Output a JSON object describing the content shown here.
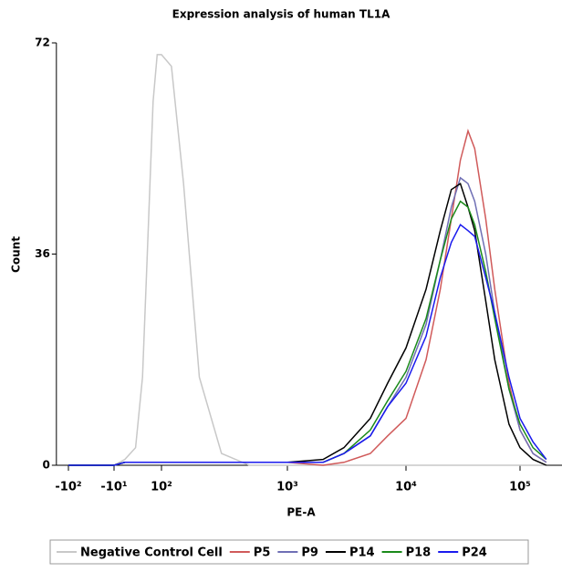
{
  "chart_data": {
    "type": "line",
    "title": "Expression analysis of human TL1A",
    "x_label": "PE-A",
    "y_label": "Count",
    "x": [
      -100,
      -10,
      0,
      10,
      20,
      30,
      50,
      70,
      100,
      120,
      150,
      200,
      300,
      500,
      1000,
      2000,
      3000,
      5000,
      7000,
      10000,
      15000,
      20000,
      25000,
      30000,
      35000,
      40000,
      50000,
      60000,
      80000,
      100000,
      130000,
      170000
    ],
    "xscale": "biexponential",
    "xlim": [
      -175,
      240000
    ],
    "xticks": [
      {
        "value": -100,
        "label": "-10²"
      },
      {
        "value": -10,
        "label": "-10¹"
      },
      {
        "value": 100,
        "label": "10²"
      },
      {
        "value": 1000,
        "label": "10³"
      },
      {
        "value": 10000,
        "label": "10⁴"
      },
      {
        "value": 100000,
        "label": "10⁵"
      }
    ],
    "ylim": [
      0,
      72
    ],
    "yticks": [
      0,
      36,
      72
    ],
    "series": [
      {
        "name": "Negative Control Cell",
        "color": "#c8c8c8",
        "values": [
          0,
          0,
          1,
          3,
          15,
          35,
          62,
          70,
          70,
          68,
          48,
          15,
          2,
          0,
          0,
          0,
          0,
          0,
          0,
          0,
          0,
          0,
          0,
          0,
          0,
          0,
          0,
          0,
          0,
          0,
          0,
          0
        ]
      },
      {
        "name": "P5",
        "color": "#d05a5a",
        "values": [
          0,
          0,
          0.5,
          0.5,
          0.5,
          0.5,
          0.5,
          0.5,
          0.5,
          0.5,
          0.5,
          0.5,
          0.5,
          0.5,
          0.5,
          0,
          0.5,
          2,
          5,
          8,
          18,
          30,
          42,
          52,
          57,
          54,
          42,
          30,
          14,
          6,
          2,
          0.5
        ]
      },
      {
        "name": "P9",
        "color": "#6f6fb5",
        "values": [
          0,
          0,
          0.5,
          0.5,
          0.5,
          0.5,
          0.5,
          0.5,
          0.5,
          0.5,
          0.5,
          0.5,
          0.5,
          0.5,
          0.5,
          0.5,
          2,
          5,
          10,
          15,
          24,
          35,
          44,
          49,
          48,
          45,
          36,
          26,
          13,
          6,
          2,
          0.5
        ]
      },
      {
        "name": "P14",
        "color": "#000000",
        "values": [
          0,
          0,
          0.5,
          0.5,
          0.5,
          0.5,
          0.5,
          0.5,
          0.5,
          0.5,
          0.5,
          0.5,
          0.5,
          0.5,
          0.5,
          1,
          3,
          8,
          14,
          20,
          30,
          40,
          47,
          48,
          44,
          40,
          28,
          18,
          7,
          3,
          1,
          0
        ]
      },
      {
        "name": "P18",
        "color": "#1a8a1a",
        "values": [
          0,
          0,
          0.5,
          0.5,
          0.5,
          0.5,
          0.5,
          0.5,
          0.5,
          0.5,
          0.5,
          0.5,
          0.5,
          0.5,
          0.5,
          0.5,
          2,
          6,
          11,
          16,
          25,
          35,
          42,
          45,
          44,
          41,
          33,
          25,
          13,
          7,
          3,
          1
        ]
      },
      {
        "name": "P24",
        "color": "#1a1aee",
        "values": [
          0,
          0,
          0.5,
          0.5,
          0.5,
          0.5,
          0.5,
          0.5,
          0.5,
          0.5,
          0.5,
          0.5,
          0.5,
          0.5,
          0.5,
          0.5,
          2,
          5,
          10,
          14,
          22,
          32,
          38,
          41,
          40,
          39,
          32,
          26,
          15,
          8,
          4,
          1
        ]
      }
    ]
  }
}
